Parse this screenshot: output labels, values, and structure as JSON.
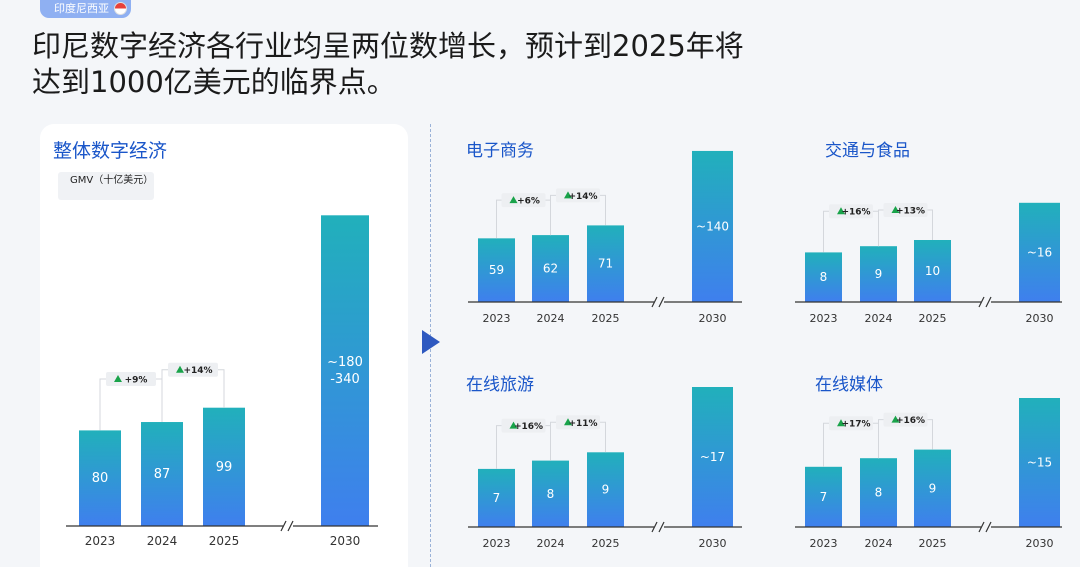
{
  "header": {
    "tag": "印度尼西亚",
    "title_line1": "印尼数字经济各行业均呈两位数增长，预计到2025年将",
    "title_line2": "达到1000亿美元的临界点。"
  },
  "colors": {
    "bar_top": "#21b0bb",
    "bar_bottom": "#3f7fee",
    "title_blue": "#1a56c9",
    "growth_green": "#19a34a"
  },
  "chart_data": [
    {
      "type": "bar",
      "title": "整体数字经济",
      "ylabel": "GMV（十亿美元）",
      "categories": [
        "2023",
        "2024",
        "2025",
        "2030"
      ],
      "values": [
        80,
        87,
        99,
        260
      ],
      "value_labels": [
        "80",
        "87",
        "99",
        "~180\n-340"
      ],
      "growth": [
        {
          "from": 0,
          "to": 1,
          "label": "+9%"
        },
        {
          "from": 1,
          "to": 2,
          "label": "+14%"
        }
      ],
      "axis_break": true
    },
    {
      "type": "bar",
      "title": "电子商务",
      "categories": [
        "2023",
        "2024",
        "2025",
        "2030"
      ],
      "values": [
        59,
        62,
        71,
        140
      ],
      "value_labels": [
        "59",
        "62",
        "71",
        "~140"
      ],
      "growth": [
        {
          "from": 0,
          "to": 1,
          "label": "+6%"
        },
        {
          "from": 1,
          "to": 2,
          "label": "+14%"
        }
      ],
      "axis_break": true
    },
    {
      "type": "bar",
      "title": "交通与食品",
      "categories": [
        "2023",
        "2024",
        "2025",
        "2030"
      ],
      "values": [
        8,
        9,
        10,
        16
      ],
      "value_labels": [
        "8",
        "9",
        "10",
        "~16"
      ],
      "growth": [
        {
          "from": 0,
          "to": 1,
          "label": "+16%"
        },
        {
          "from": 1,
          "to": 2,
          "label": "+13%"
        }
      ],
      "axis_break": true
    },
    {
      "type": "bar",
      "title": "在线旅游",
      "categories": [
        "2023",
        "2024",
        "2025",
        "2030"
      ],
      "values": [
        7,
        8,
        9,
        17
      ],
      "value_labels": [
        "7",
        "8",
        "9",
        "~17"
      ],
      "growth": [
        {
          "from": 0,
          "to": 1,
          "label": "+16%"
        },
        {
          "from": 1,
          "to": 2,
          "label": "+11%"
        }
      ],
      "axis_break": true
    },
    {
      "type": "bar",
      "title": "在线媒体",
      "categories": [
        "2023",
        "2024",
        "2025",
        "2030"
      ],
      "values": [
        7,
        8,
        9,
        15
      ],
      "value_labels": [
        "7",
        "8",
        "9",
        "~15"
      ],
      "growth": [
        {
          "from": 0,
          "to": 1,
          "label": "+17%"
        },
        {
          "from": 1,
          "to": 2,
          "label": "+16%"
        }
      ],
      "axis_break": true
    }
  ]
}
